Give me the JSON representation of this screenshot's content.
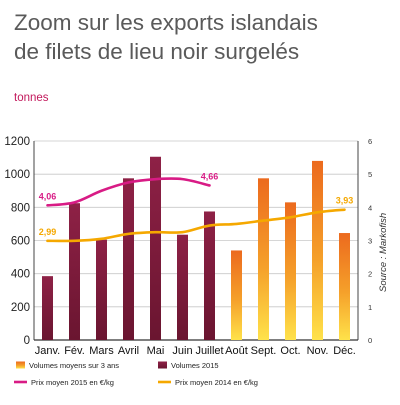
{
  "title_line1": "Zoom sur les exports islandais",
  "title_line2": "de filets de lieu noir surgelés",
  "unit_label": "tonnes",
  "source": "Source : Markofish",
  "chart_data": {
    "type": "bar",
    "categories": [
      "Janv.",
      "Fév.",
      "Mars",
      "Avril",
      "Mai",
      "Juin",
      "Juillet",
      "Août",
      "Sept.",
      "Oct.",
      "Nov.",
      "Déc."
    ],
    "ylim": [
      0,
      1200
    ],
    "y_ticks": [
      0,
      200,
      400,
      600,
      800,
      1000,
      1200
    ],
    "y2lim": [
      0,
      6
    ],
    "y2_ticks": [
      0,
      1,
      2,
      3,
      4,
      5,
      6
    ],
    "grid": true,
    "legend_position": "bottom",
    "series": [
      {
        "name": "Volumes moyens sur 3 ans",
        "kind": "bar",
        "color": "#f39c2c",
        "values": [
          null,
          null,
          null,
          null,
          null,
          null,
          null,
          540,
          975,
          830,
          1080,
          645
        ]
      },
      {
        "name": "Volumes 2015",
        "kind": "bar",
        "color": "#7b1c3a",
        "values": [
          385,
          825,
          605,
          975,
          1105,
          635,
          775,
          null,
          null,
          null,
          null,
          null
        ]
      },
      {
        "name": "Prix moyen 2015 en €/kg",
        "kind": "line",
        "axis": "y2",
        "color": "#d81b85",
        "values": [
          4.06,
          4.15,
          4.5,
          4.75,
          4.85,
          4.85,
          4.66,
          null,
          null,
          null,
          null,
          null
        ],
        "labels": [
          {
            "index": 0,
            "text": "4,06"
          },
          {
            "index": 6,
            "text": "4,66"
          }
        ]
      },
      {
        "name": "Prix moyen 2014 en €/kg",
        "kind": "line",
        "axis": "y2",
        "color": "#f5a800",
        "values": [
          2.99,
          2.99,
          3.05,
          3.2,
          3.25,
          3.25,
          3.45,
          3.5,
          3.6,
          3.7,
          3.85,
          3.93
        ],
        "labels": [
          {
            "index": 0,
            "text": "2,99"
          },
          {
            "index": 11,
            "text": "3,93"
          }
        ]
      }
    ]
  }
}
